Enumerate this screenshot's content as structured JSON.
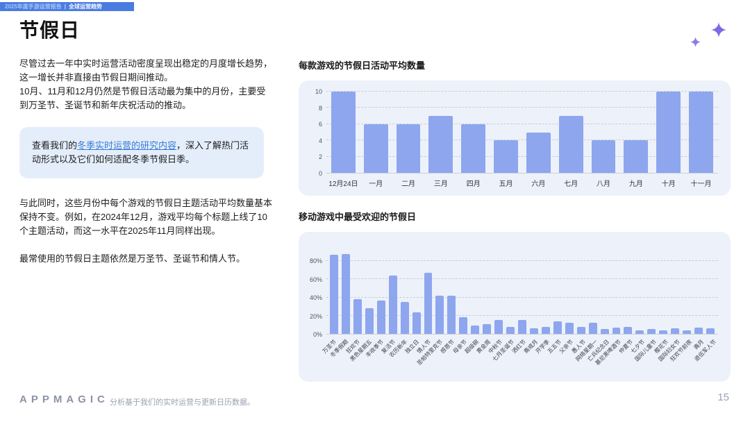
{
  "header": {
    "report_title": "2025年度手游运营报告",
    "divider": "|",
    "section": "全球运营趋势"
  },
  "page": {
    "title": "节假日",
    "page_number": "15"
  },
  "intro": {
    "p1": "尽管过去一年中实时运营活动密度呈现出稳定的月度增长趋势，这一增长并非直接由节假日期间推动。",
    "p2": "10月、11月和12月仍然是节假日活动最为集中的月份，主要受到万圣节、圣诞节和新年庆祝活动的推动。"
  },
  "callout": {
    "prefix": "查看我们的",
    "link_text": "冬季实时运营的研究内容",
    "suffix": "，深入了解热门活动形式以及它们如何适配冬季节假日季。"
  },
  "body": {
    "p1": "与此同时，这些月份中每个游戏的节假日主题活动平均数量基本保持不变。例如，在2024年12月，游戏平均每个标题上线了10个主题活动，而这一水平在2025年11月同样出现。",
    "p2": "最常使用的节假日主题依然是万圣节、圣诞节和情人节。"
  },
  "footer": {
    "logo": "APPMAGIC",
    "note": "分析基于我们的实时运营与更新日历数据。"
  },
  "colors": {
    "strip_bg": "#4a7ce0",
    "bar_fill": "#8da6ee",
    "panel_bg": "#edf1f9",
    "callout_bg": "#e4eefb",
    "link": "#3a7bd5",
    "sparkle": "#7e6ae0"
  },
  "chart_data": [
    {
      "type": "bar",
      "title": "每款游戏的节假日活动平均数量",
      "categories": [
        "12月24日",
        "一月",
        "二月",
        "三月",
        "四月",
        "五月",
        "六月",
        "七月",
        "八月",
        "九月",
        "十月",
        "十一月"
      ],
      "values": [
        10,
        6,
        6,
        7,
        6,
        4,
        5,
        7,
        4,
        4,
        10,
        10
      ],
      "xlabel": "",
      "ylabel": "",
      "ylim": [
        0,
        10
      ],
      "yticks": [
        0,
        2,
        4,
        6,
        8,
        10
      ],
      "tick_format": "number",
      "grid": "dashed-horizontal",
      "legend": "none",
      "label_rotate": 0
    },
    {
      "type": "bar",
      "title": "移动游戏中最受欢迎的节假日",
      "categories": [
        "万圣节",
        "冬季假期",
        "狂欢节",
        "黑色星期五",
        "丰收季节",
        "复活节",
        "农历新年",
        "独立日",
        "情人节",
        "圣帕特里克节",
        "感恩节",
        "母亲节",
        "超级碗",
        "黄金周",
        "中秋节",
        "七月圣诞节",
        "洒红节",
        "斋戒月",
        "开学季",
        "五五节",
        "父亲节",
        "愚人节",
        "网络星期一",
        "亡兵纪念日",
        "慕尼黑啤酒节",
        "仲夏节",
        "七夕节",
        "国际儿童节",
        "樱花节",
        "国际妇女节",
        "狂欢节前夜",
        "斋月",
        "退伍军人节"
      ],
      "values": [
        87,
        88,
        38,
        28,
        37,
        64,
        35,
        24,
        67,
        42,
        42,
        18,
        9,
        11,
        15,
        8,
        15,
        6,
        8,
        14,
        12,
        8,
        12,
        5,
        7,
        8,
        4,
        5,
        4,
        6,
        4,
        7,
        6
      ],
      "xlabel": "",
      "ylabel": "",
      "ylim": [
        0,
        100
      ],
      "yticks": [
        0,
        20,
        40,
        60,
        80
      ],
      "tick_format": "percent",
      "grid": "dashed-horizontal",
      "legend": "none",
      "label_rotate": 45
    }
  ]
}
